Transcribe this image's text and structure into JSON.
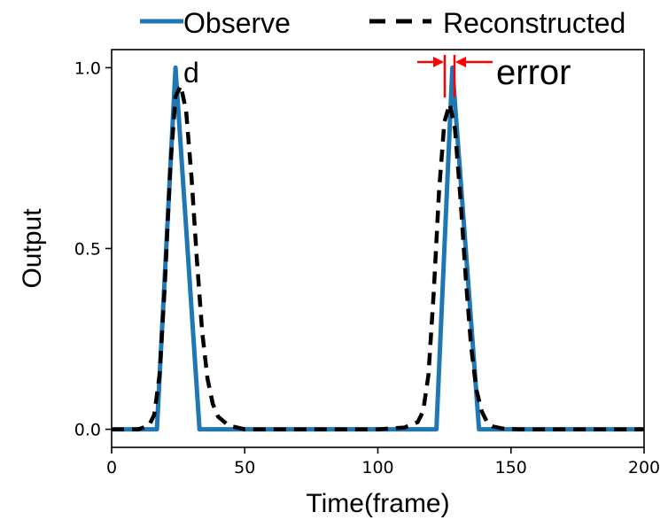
{
  "chart_data": {
    "type": "line",
    "xlabel": "Time(frame)",
    "ylabel": "Output",
    "xlim": [
      0,
      200
    ],
    "ylim": [
      -0.05,
      1.05
    ],
    "xticks": [
      0,
      50,
      100,
      150,
      200
    ],
    "xtick_labels": [
      "0",
      "50",
      "100",
      "150",
      "200"
    ],
    "yticks": [
      0.0,
      0.5,
      1.0
    ],
    "ytick_labels": [
      "0.0",
      "0.5",
      "1.0"
    ],
    "grid": false,
    "legend_placement": "above plot",
    "series": [
      {
        "name": "Observed",
        "legend_label_line1": "Observe",
        "legend_label_line2": "d",
        "color": "#1f77b4",
        "style": "solid",
        "x": [
          0,
          17,
          24,
          33,
          34,
          122,
          128,
          138,
          139,
          200
        ],
        "y": [
          0,
          0,
          1.0,
          0,
          0,
          0,
          1.0,
          0,
          0,
          0
        ]
      },
      {
        "name": "Reconstructed",
        "color": "#000000",
        "style": "dashed",
        "x": [
          0,
          10,
          14,
          16,
          18,
          20,
          22,
          24,
          26,
          28,
          30,
          32,
          34,
          36,
          38,
          40,
          44,
          50,
          60,
          100,
          110,
          115,
          117,
          119,
          121,
          123,
          125,
          127,
          129,
          131,
          133,
          135,
          137,
          139,
          141,
          143,
          147,
          153,
          160,
          200
        ],
        "y": [
          0,
          0,
          0.01,
          0.04,
          0.15,
          0.4,
          0.72,
          0.92,
          0.95,
          0.88,
          0.7,
          0.47,
          0.27,
          0.14,
          0.07,
          0.035,
          0.01,
          0,
          0,
          0,
          0.005,
          0.02,
          0.05,
          0.15,
          0.38,
          0.66,
          0.85,
          0.9,
          0.83,
          0.64,
          0.42,
          0.23,
          0.11,
          0.05,
          0.02,
          0.008,
          0.002,
          0,
          0,
          0
        ]
      }
    ],
    "annotation": {
      "text": "error",
      "color": "#ff0000",
      "x_left": 124,
      "x_right": 128
    }
  }
}
